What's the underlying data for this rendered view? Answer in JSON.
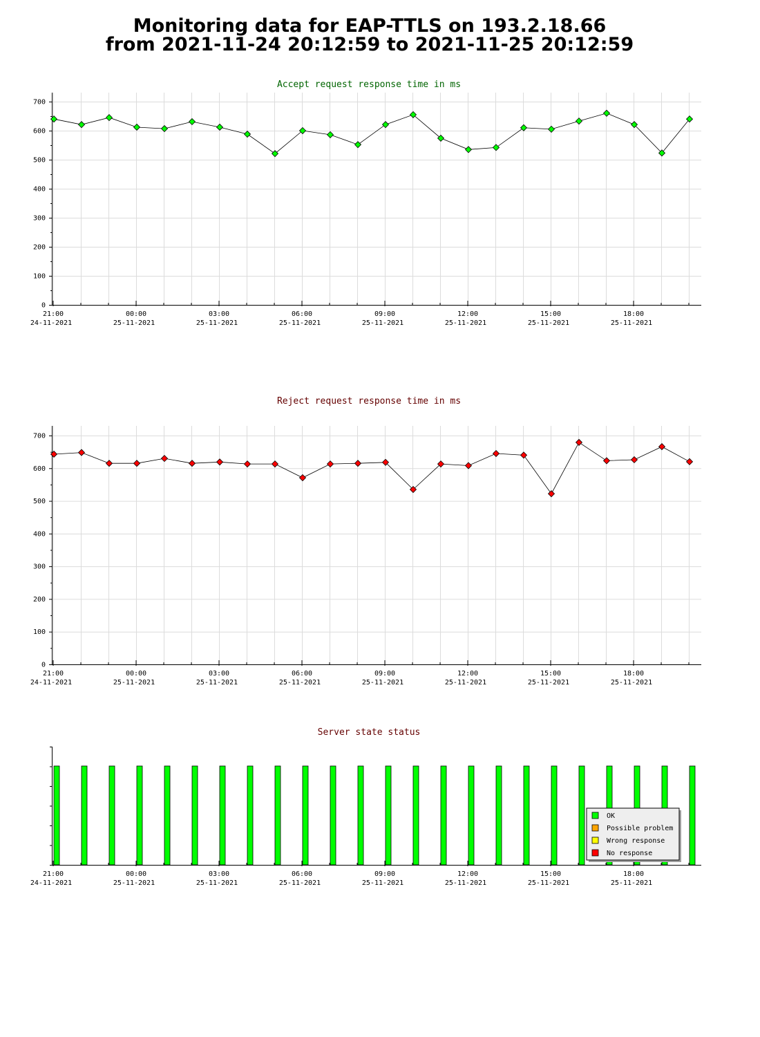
{
  "page": {
    "title_line1": "Monitoring data for EAP-TTLS on 193.2.18.66",
    "title_line2": "from 2021-11-24 20:12:59 to 2021-11-25 20:12:59"
  },
  "colors": {
    "accept_title": "#006400",
    "reject_title": "#640000",
    "status_title": "#640000",
    "accept_marker": "#00ff00",
    "reject_marker": "#ff0000",
    "line": "#000000",
    "grid": "#dcdcdc",
    "ok": "#00ff00",
    "possible_problem": "#ffa500",
    "wrong_response": "#ffff00",
    "no_response": "#ff0000"
  },
  "x_axis": {
    "ticks": [
      {
        "time": "21:00",
        "date": "24-11-2021"
      },
      {
        "time": "00:00",
        "date": "25-11-2021"
      },
      {
        "time": "03:00",
        "date": "25-11-2021"
      },
      {
        "time": "06:00",
        "date": "25-11-2021"
      },
      {
        "time": "09:00",
        "date": "25-11-2021"
      },
      {
        "time": "12:00",
        "date": "25-11-2021"
      },
      {
        "time": "15:00",
        "date": "25-11-2021"
      },
      {
        "time": "18:00",
        "date": "25-11-2021"
      }
    ]
  },
  "chart_data": [
    {
      "type": "line",
      "title": "Accept request response time in ms",
      "ylim": [
        0,
        700
      ],
      "yticks": [
        0,
        100,
        200,
        300,
        400,
        500,
        600,
        700
      ],
      "grid": true,
      "series": [
        {
          "values": [
            640,
            621,
            645,
            612,
            607,
            631,
            612,
            588,
            521,
            600,
            586,
            552,
            621,
            655,
            574,
            535,
            542,
            610,
            605,
            633,
            660,
            621,
            523,
            640
          ]
        }
      ]
    },
    {
      "type": "line",
      "title": "Reject request response time in ms",
      "ylim": [
        0,
        700
      ],
      "yticks": [
        0,
        100,
        200,
        300,
        400,
        500,
        600,
        700
      ],
      "grid": true,
      "series": [
        {
          "values": [
            643,
            648,
            615,
            615,
            630,
            615,
            619,
            613,
            613,
            571,
            613,
            615,
            618,
            535,
            613,
            608,
            645,
            640,
            522,
            679,
            623,
            626,
            666,
            620
          ]
        }
      ]
    },
    {
      "type": "bar",
      "title": "Server state status",
      "values": [
        "OK",
        "OK",
        "OK",
        "OK",
        "OK",
        "OK",
        "OK",
        "OK",
        "OK",
        "OK",
        "OK",
        "OK",
        "OK",
        "OK",
        "OK",
        "OK",
        "OK",
        "OK",
        "OK",
        "OK",
        "OK",
        "OK",
        "OK",
        "OK"
      ],
      "legend": {
        "placement": "bottom-right",
        "items": [
          {
            "label": "OK",
            "color": "#00ff00"
          },
          {
            "label": "Possible problem",
            "color": "#ffa500"
          },
          {
            "label": "Wrong response",
            "color": "#ffff00"
          },
          {
            "label": "No response",
            "color": "#ff0000"
          }
        ]
      }
    }
  ]
}
